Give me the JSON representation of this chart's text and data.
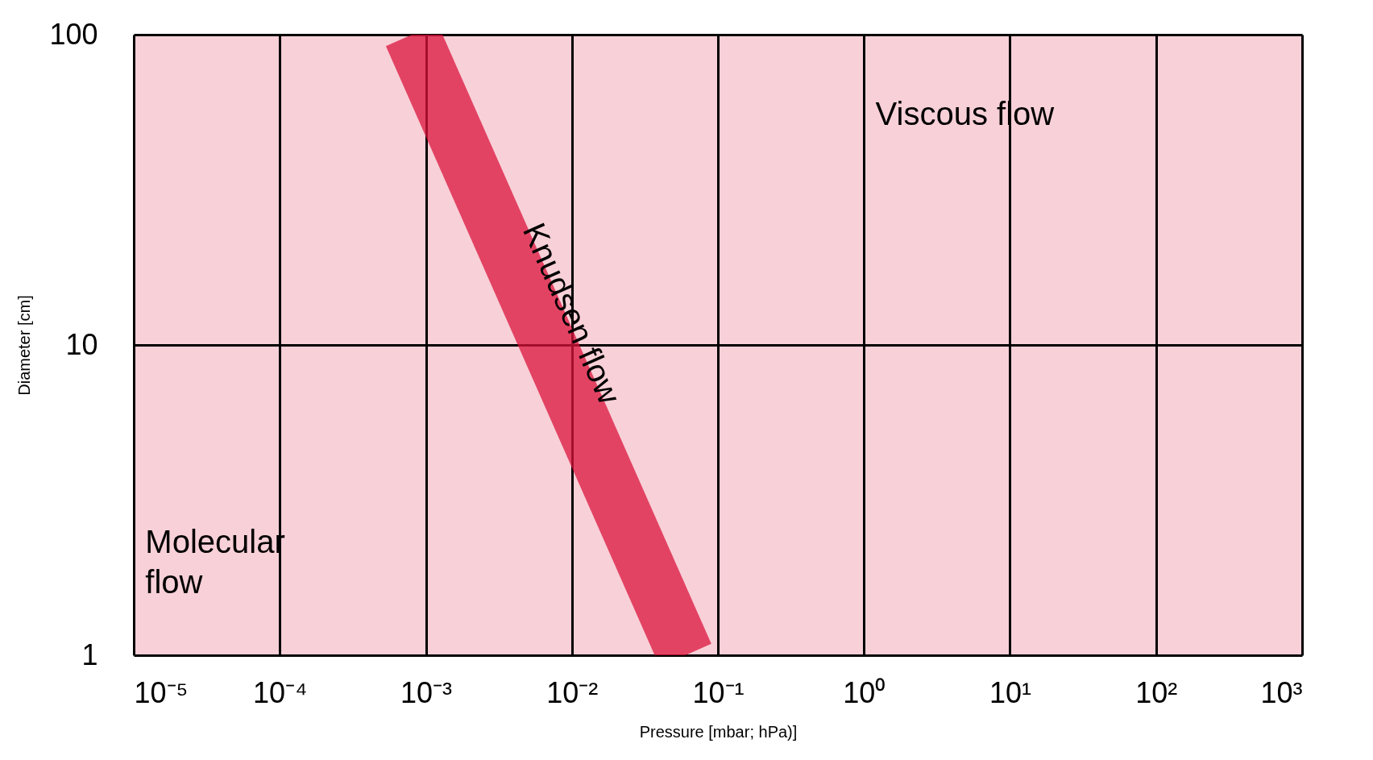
{
  "chart_data": {
    "type": "line",
    "xlabel": "Pressure [mbar; hPa)]",
    "ylabel": "Diameter [cm]",
    "log": "xy",
    "grid": true,
    "xlim": [
      1e-05,
      1000
    ],
    "ylim": [
      1,
      100
    ],
    "xticks": [
      {
        "value": 1e-05,
        "label": "10⁻⁵"
      },
      {
        "value": 0.0001,
        "label": "10⁻⁴"
      },
      {
        "value": 0.001,
        "label": "10⁻³"
      },
      {
        "value": 0.01,
        "label": "10⁻²"
      },
      {
        "value": 0.1,
        "label": "10⁻¹"
      },
      {
        "value": 1,
        "label": "10⁰"
      },
      {
        "value": 10,
        "label": "10¹"
      },
      {
        "value": 100,
        "label": "10²"
      },
      {
        "value": 1000,
        "label": "10³"
      }
    ],
    "yticks": [
      1,
      10,
      100
    ],
    "series": [
      {
        "name": "Knudsen flow",
        "color": "#dc143c",
        "x": [
          0.0008,
          0.06
        ],
        "values": [
          100,
          1
        ]
      }
    ],
    "annotations": [
      "Viscous flow",
      "Molecular flow"
    ]
  }
}
